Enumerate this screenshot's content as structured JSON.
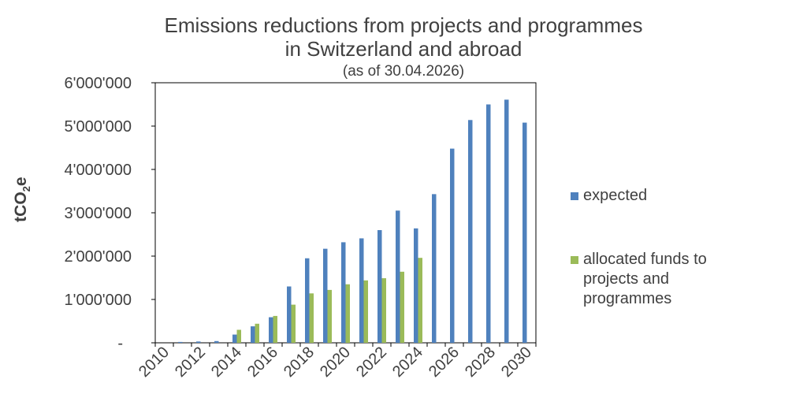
{
  "chart_data": {
    "type": "bar",
    "title_lines": [
      "Emissions reductions from projects and programmes",
      "in Switzerland and abroad"
    ],
    "subtitle": "(as of 30.04.2026)",
    "ylabel_main": "tCO",
    "ylabel_sub": "2",
    "ylabel_tail": "e",
    "ylim": [
      0,
      6000000
    ],
    "y_ticks": [
      {
        "value": 0,
        "label": "-"
      },
      {
        "value": 1000000,
        "label": "1'000'000"
      },
      {
        "value": 2000000,
        "label": "2'000'000"
      },
      {
        "value": 3000000,
        "label": "3'000'000"
      },
      {
        "value": 4000000,
        "label": "4'000'000"
      },
      {
        "value": 5000000,
        "label": "5'000'000"
      },
      {
        "value": 6000000,
        "label": "6'000'000"
      }
    ],
    "categories": [
      "2010",
      "2011",
      "2012",
      "2013",
      "2014",
      "2015",
      "2016",
      "2017",
      "2018",
      "2019",
      "2020",
      "2021",
      "2022",
      "2023",
      "2024",
      "2025",
      "2026",
      "2027",
      "2028",
      "2029",
      "2030"
    ],
    "x_tick_labels": [
      "2010",
      "",
      "2012",
      "",
      "2014",
      "",
      "2016",
      "",
      "2018",
      "",
      "2020",
      "",
      "2022",
      "",
      "2024",
      "",
      "2026",
      "",
      "2028",
      "",
      "2030"
    ],
    "series": [
      {
        "name": "expected",
        "color": "#4f81bd",
        "values": [
          0,
          20000,
          30000,
          40000,
          190000,
          380000,
          590000,
          1300000,
          1950000,
          2170000,
          2320000,
          2410000,
          2600000,
          3050000,
          2640000,
          3430000,
          4480000,
          5140000,
          5500000,
          5610000,
          5080000
        ]
      },
      {
        "name": "allocated funds to\nprojects and\nprogrammes",
        "color": "#9bbb59",
        "values": [
          0,
          0,
          0,
          0,
          300000,
          440000,
          620000,
          880000,
          1140000,
          1220000,
          1350000,
          1440000,
          1490000,
          1640000,
          1960000,
          0,
          0,
          0,
          0,
          0,
          0
        ]
      }
    ],
    "grid": false,
    "legend_position": "right"
  }
}
